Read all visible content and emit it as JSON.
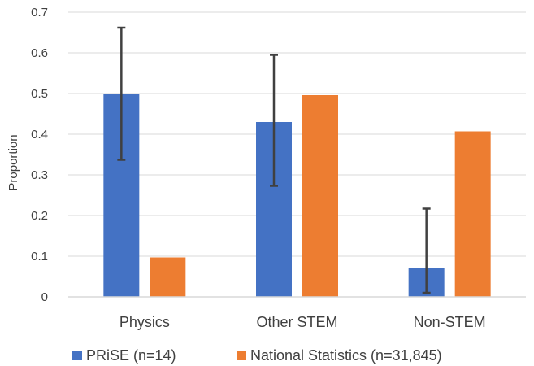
{
  "chart_data": {
    "type": "bar",
    "title": "",
    "xlabel": "",
    "ylabel": "Proportion",
    "ylim": [
      0,
      0.7
    ],
    "yticks": [
      "0",
      "0.1",
      "0.2",
      "0.3",
      "0.4",
      "0.5",
      "0.6",
      "0.7"
    ],
    "categories": [
      "Physics",
      "Other STEM",
      "Non-STEM"
    ],
    "series": [
      {
        "name": "PRiSE (n=14)",
        "color": "#4472C4",
        "values": [
          0.5,
          0.43,
          0.07
        ],
        "error_low": [
          0.337,
          0.273,
          0.01
        ],
        "error_high": [
          0.662,
          0.595,
          0.217
        ]
      },
      {
        "name": "National Statistics (n=31,845)",
        "color": "#ED7D31",
        "values": [
          0.097,
          0.496,
          0.407
        ]
      }
    ],
    "grid": true,
    "legend": "bottom"
  }
}
